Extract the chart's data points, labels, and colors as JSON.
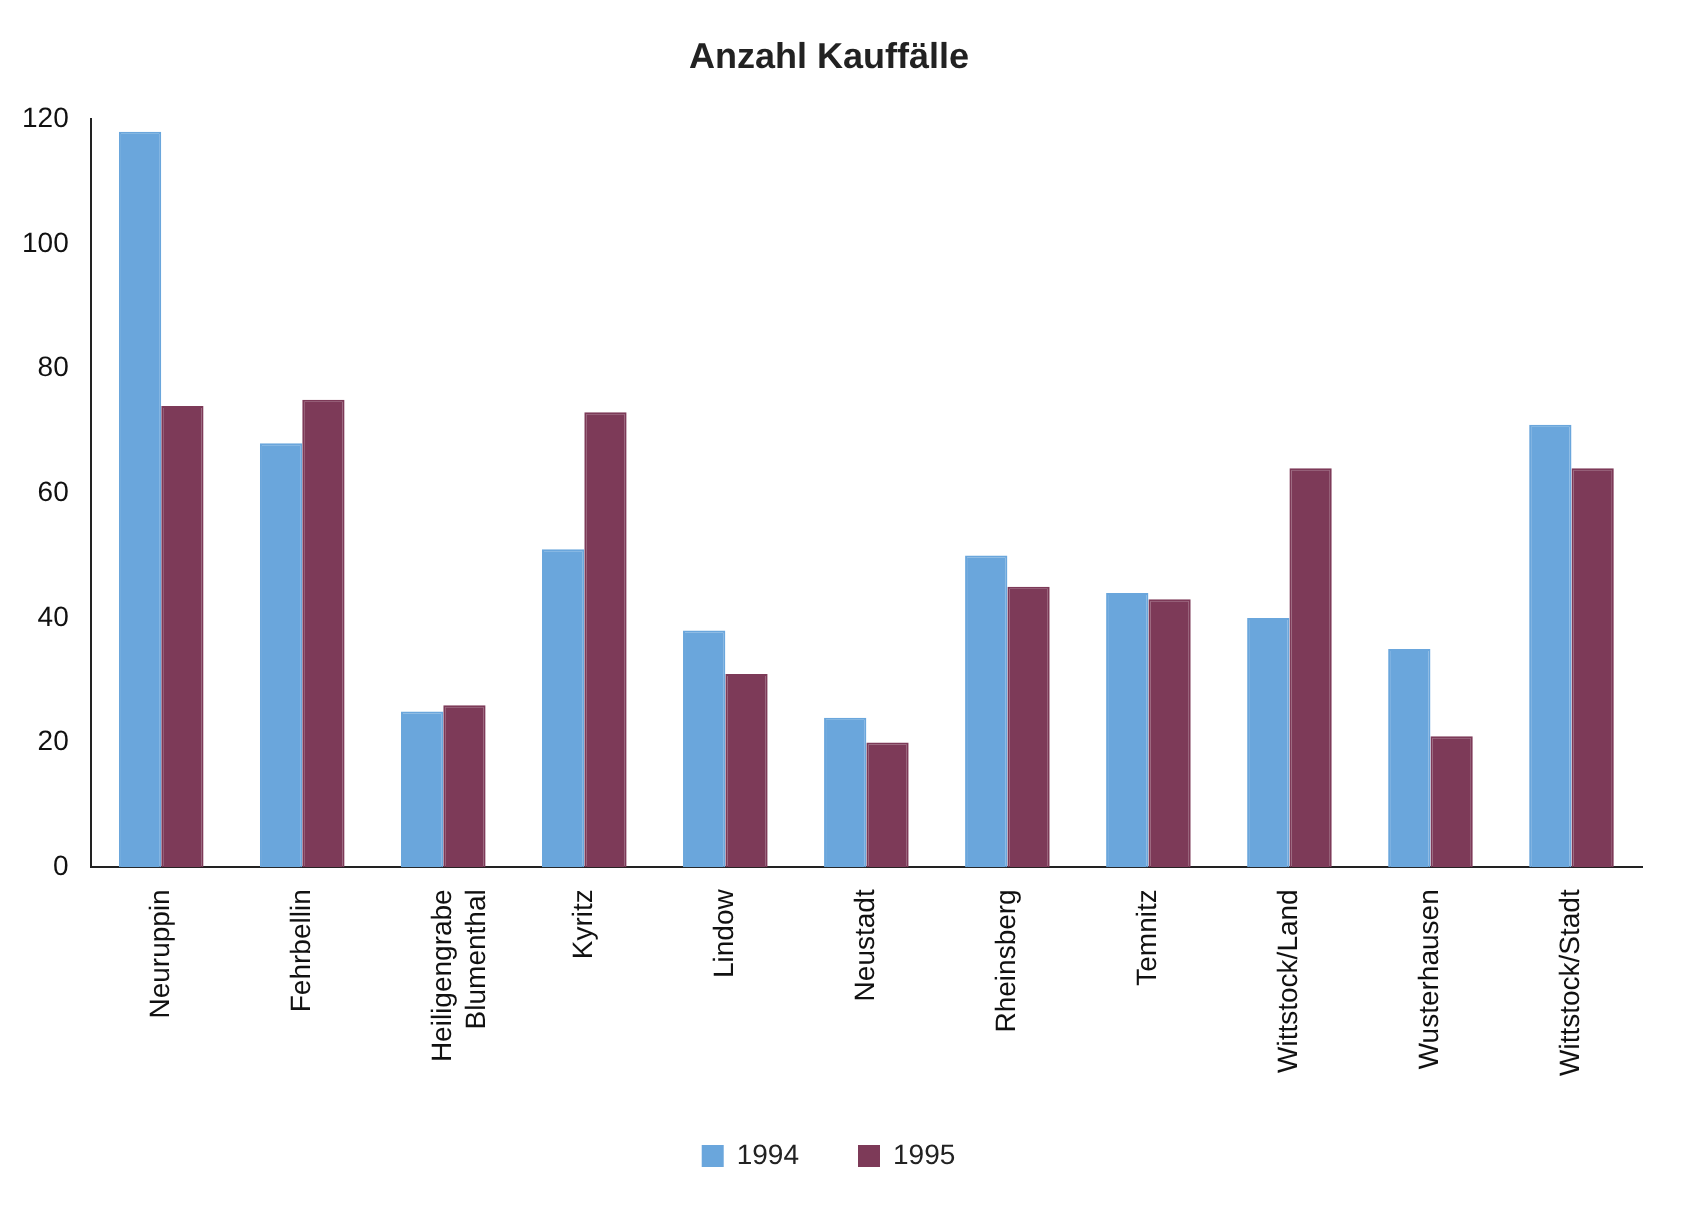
{
  "chart_data": {
    "type": "bar",
    "title": "Anzahl Kauffälle",
    "categories": [
      "Neuruppin",
      "Fehrbellin",
      "Heiligengrabe\nBlumenthal",
      "Kyritz",
      "Lindow",
      "Neustadt",
      "Rheinsberg",
      "Temnitz",
      "Wittstock/Land",
      "Wusterhausen",
      "Wittstock/Stadt"
    ],
    "series": [
      {
        "name": "1994",
        "color": "#6aa6dc",
        "values": [
          118,
          68,
          25,
          51,
          38,
          24,
          50,
          44,
          40,
          35,
          71
        ]
      },
      {
        "name": "1995",
        "color": "#7d3a58",
        "values": [
          74,
          75,
          26,
          73,
          31,
          20,
          45,
          43,
          64,
          21,
          64
        ]
      }
    ],
    "ylim": [
      0,
      120
    ],
    "yticks": [
      0,
      20,
      40,
      60,
      80,
      100,
      120
    ],
    "grid": false,
    "legend": "bottom"
  }
}
